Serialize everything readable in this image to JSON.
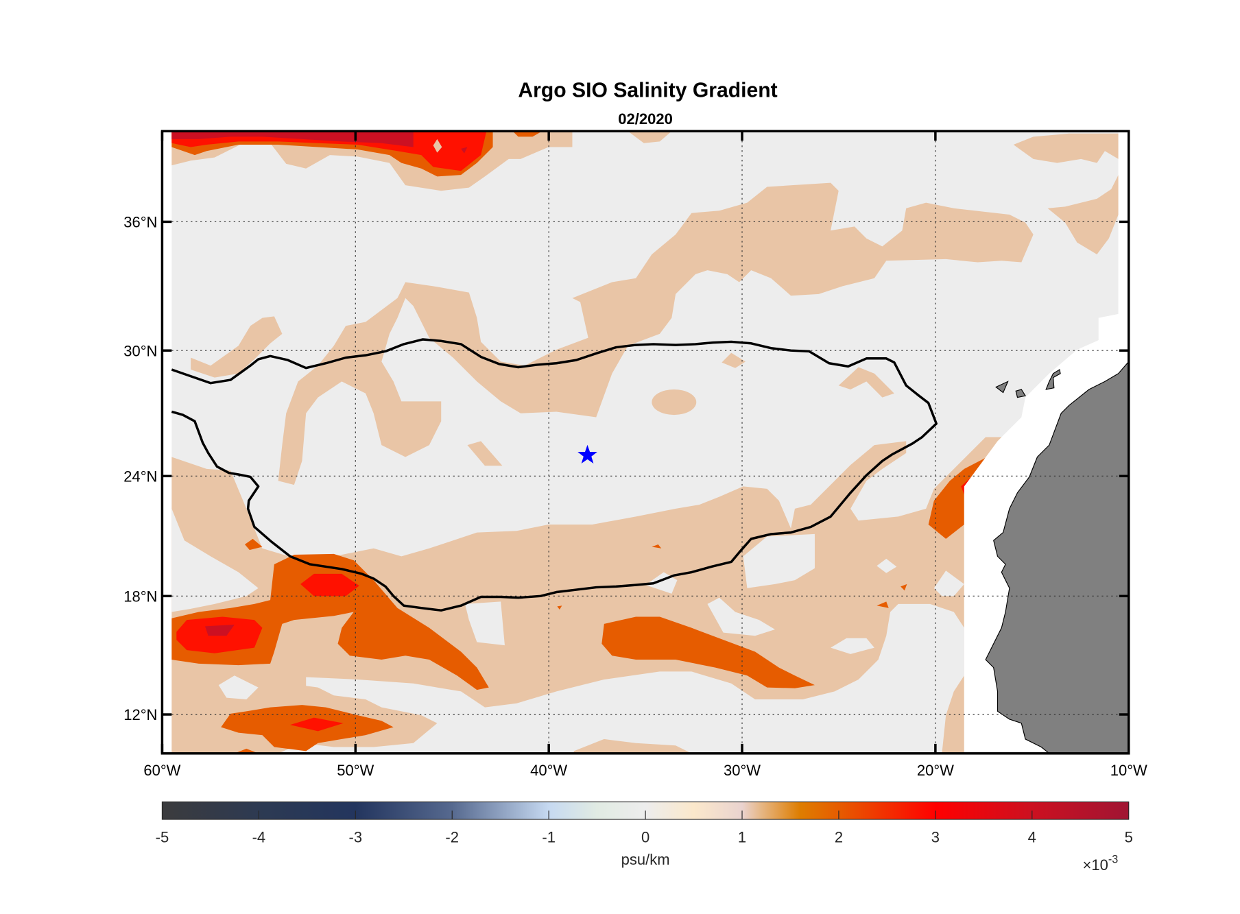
{
  "chart_data": {
    "type": "contour",
    "title": "Argo SIO Salinity Gradient",
    "subtitle": "02/2020",
    "xlabel": "",
    "ylabel": "",
    "xlim": [
      -60,
      -10
    ],
    "ylim": [
      10,
      40
    ],
    "x_ticks": [
      -60,
      -50,
      -40,
      -30,
      -20,
      -10
    ],
    "x_tick_labels": [
      "60°W",
      "50°W",
      "40°W",
      "30°W",
      "20°W",
      "10°W"
    ],
    "y_ticks": [
      36,
      30,
      24,
      18,
      12
    ],
    "y_tick_labels": [
      "36°N",
      "30°N",
      "24°N",
      "18°N",
      "12°N"
    ],
    "grid": true,
    "contour_levels": [
      0,
      1,
      2,
      3,
      4,
      5
    ],
    "level_colors": {
      "0-1": "#EDEDED",
      "1-2": "#E9C5A6",
      "2-3": "#E65C00",
      "3-4": "#FF1100",
      "4-5": "#CC1022"
    },
    "land_color": "#808080",
    "contour_line_color": "#000000",
    "marker": {
      "type": "star",
      "lon": -38.0,
      "lat": 25.0,
      "color": "#0000FF"
    },
    "colorbar": {
      "location": "bottom",
      "range": [
        -5,
        5
      ],
      "ticks": [
        -5,
        -4,
        -3,
        -2,
        -1,
        0,
        1,
        2,
        3,
        4,
        5
      ],
      "tick_labels": [
        "-5",
        "-4",
        "-3",
        "-2",
        "-1",
        "0",
        "1",
        "2",
        "3",
        "4",
        "5"
      ],
      "label": "psu/km",
      "exponent_prefix": "×10",
      "exponent": "-3",
      "colormap": [
        {
          "v": -5,
          "c": "#3B3B3D"
        },
        {
          "v": -4,
          "c": "#2D3A52"
        },
        {
          "v": -3,
          "c": "#23355E"
        },
        {
          "v": -2,
          "c": "#56698F"
        },
        {
          "v": -1,
          "c": "#C6D9F1"
        },
        {
          "v": -0.5,
          "c": "#E1EBE3"
        },
        {
          "v": 0,
          "c": "#EDEDED"
        },
        {
          "v": 0.5,
          "c": "#FBE8CB"
        },
        {
          "v": 1,
          "c": "#EAD3CF"
        },
        {
          "v": 1.2,
          "c": "#E6B684"
        },
        {
          "v": 1.6,
          "c": "#DE7D00"
        },
        {
          "v": 2,
          "c": "#E65C00"
        },
        {
          "v": 3,
          "c": "#FF0000"
        },
        {
          "v": 4,
          "c": "#CC1020"
        },
        {
          "v": 5,
          "c": "#A01533"
        }
      ]
    }
  }
}
